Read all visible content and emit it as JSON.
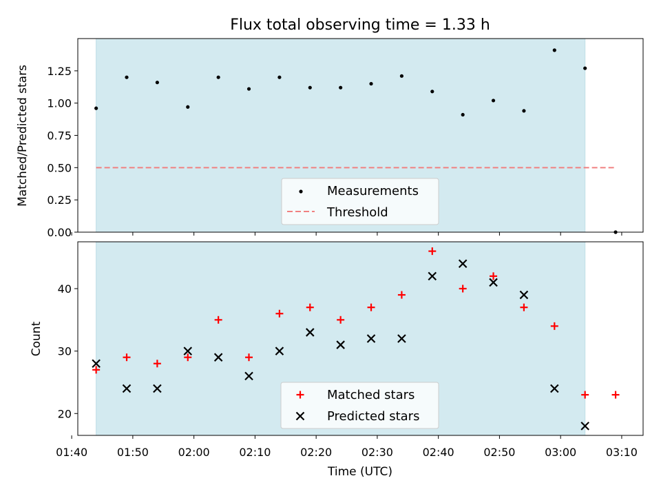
{
  "colors": {
    "span_fill": "#d3eaf0",
    "span_stroke": "#bfdde6",
    "measure": "#000000",
    "threshold": "#f08080",
    "matched": "#ff0000",
    "predicted": "#000000"
  },
  "chart_data": [
    {
      "type": "scatter",
      "title": "Flux total observing time = 1.33 h",
      "ylabel": "Matched/Predicted stars",
      "xlabel": "",
      "xlim_min": [
        101,
        193.5
      ],
      "ylim": [
        0,
        1.5
      ],
      "yticks": [
        0.0,
        0.25,
        0.5,
        0.75,
        1.0,
        1.25
      ],
      "ytick_labels": [
        "0.00",
        "0.25",
        "0.50",
        "0.75",
        "1.00",
        "1.25"
      ],
      "xticks_min": [
        100,
        110,
        120,
        130,
        140,
        150,
        160,
        170,
        180,
        190
      ],
      "shaded_span_min": [
        104,
        184
      ],
      "series": [
        {
          "name": "Measurements",
          "marker": "dot",
          "x_min": [
            104,
            109,
            114,
            119,
            124,
            129,
            134,
            139,
            144,
            149,
            154,
            159,
            164,
            169,
            174,
            179,
            184,
            189
          ],
          "values": [
            0.96,
            1.2,
            1.16,
            0.97,
            1.2,
            1.11,
            1.2,
            1.12,
            1.12,
            1.15,
            1.21,
            1.09,
            0.91,
            1.02,
            0.94,
            1.41,
            1.27,
            0.0
          ]
        },
        {
          "name": "Threshold",
          "marker": "dashed-line",
          "x_min": [
            104,
            189
          ],
          "values": [
            0.5,
            0.5
          ]
        }
      ],
      "legend": [
        "Measurements",
        "Threshold"
      ],
      "legend_position": "lower-center"
    },
    {
      "type": "scatter",
      "title": "",
      "ylabel": "Count",
      "xlabel": "Time (UTC)",
      "xlim_min": [
        101,
        193.5
      ],
      "ylim": [
        16.5,
        47.5
      ],
      "yticks": [
        20,
        30,
        40
      ],
      "ytick_labels": [
        "20",
        "30",
        "40"
      ],
      "xticks_min": [
        100,
        110,
        120,
        130,
        140,
        150,
        160,
        170,
        180,
        190
      ],
      "xtick_labels": [
        "01:40",
        "01:50",
        "02:00",
        "02:10",
        "02:20",
        "02:30",
        "02:40",
        "02:50",
        "03:00",
        "03:10"
      ],
      "shaded_span_min": [
        104,
        184
      ],
      "series": [
        {
          "name": "Matched stars",
          "marker": "plus",
          "x_min": [
            104,
            109,
            114,
            119,
            124,
            129,
            134,
            139,
            144,
            149,
            154,
            159,
            164,
            169,
            174,
            179,
            184,
            189
          ],
          "values": [
            27,
            29,
            28,
            29,
            35,
            29,
            36,
            37,
            35,
            37,
            39,
            46,
            40,
            42,
            37,
            34,
            23,
            23
          ]
        },
        {
          "name": "Predicted stars",
          "marker": "x",
          "x_min": [
            104,
            109,
            114,
            119,
            124,
            129,
            134,
            139,
            144,
            149,
            154,
            159,
            164,
            169,
            174,
            179,
            184
          ],
          "values": [
            28,
            24,
            24,
            30,
            29,
            26,
            30,
            33,
            31,
            32,
            32,
            42,
            44,
            41,
            39,
            24,
            18
          ]
        }
      ],
      "legend": [
        "Matched stars",
        "Predicted stars"
      ],
      "legend_position": "lower-center"
    }
  ]
}
